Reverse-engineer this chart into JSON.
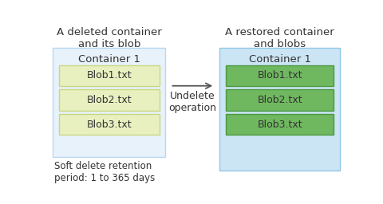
{
  "title_left": "A deleted container\nand its blob",
  "title_right": "A restored container\nand blobs",
  "container_label": "Container 1",
  "blob_labels": [
    "Blob1.txt",
    "Blob2.txt",
    "Blob3.txt"
  ],
  "arrow_label": "Undelete\noperation",
  "footer_label": "Soft delete retention\nperiod: 1 to 365 days",
  "bg_color": "#ffffff",
  "container_bg_left": "#e8f2fb",
  "container_bg_right": "#cce5f5",
  "blob_color_left": "#e8f0c0",
  "blob_color_right": "#70b860",
  "blob_border_left": "#c8d880",
  "blob_border_right": "#4a9840",
  "container_border_left": "#b8d8f0",
  "container_border_right": "#90c8e8",
  "arrow_color": "#555555",
  "text_color": "#333333",
  "blob_text_color_left": "#333333",
  "blob_text_color_right": "#333333",
  "title_fontsize": 9.5,
  "container_label_fontsize": 9.5,
  "blob_fontsize": 9,
  "footer_fontsize": 8.5,
  "arrow_label_fontsize": 9
}
